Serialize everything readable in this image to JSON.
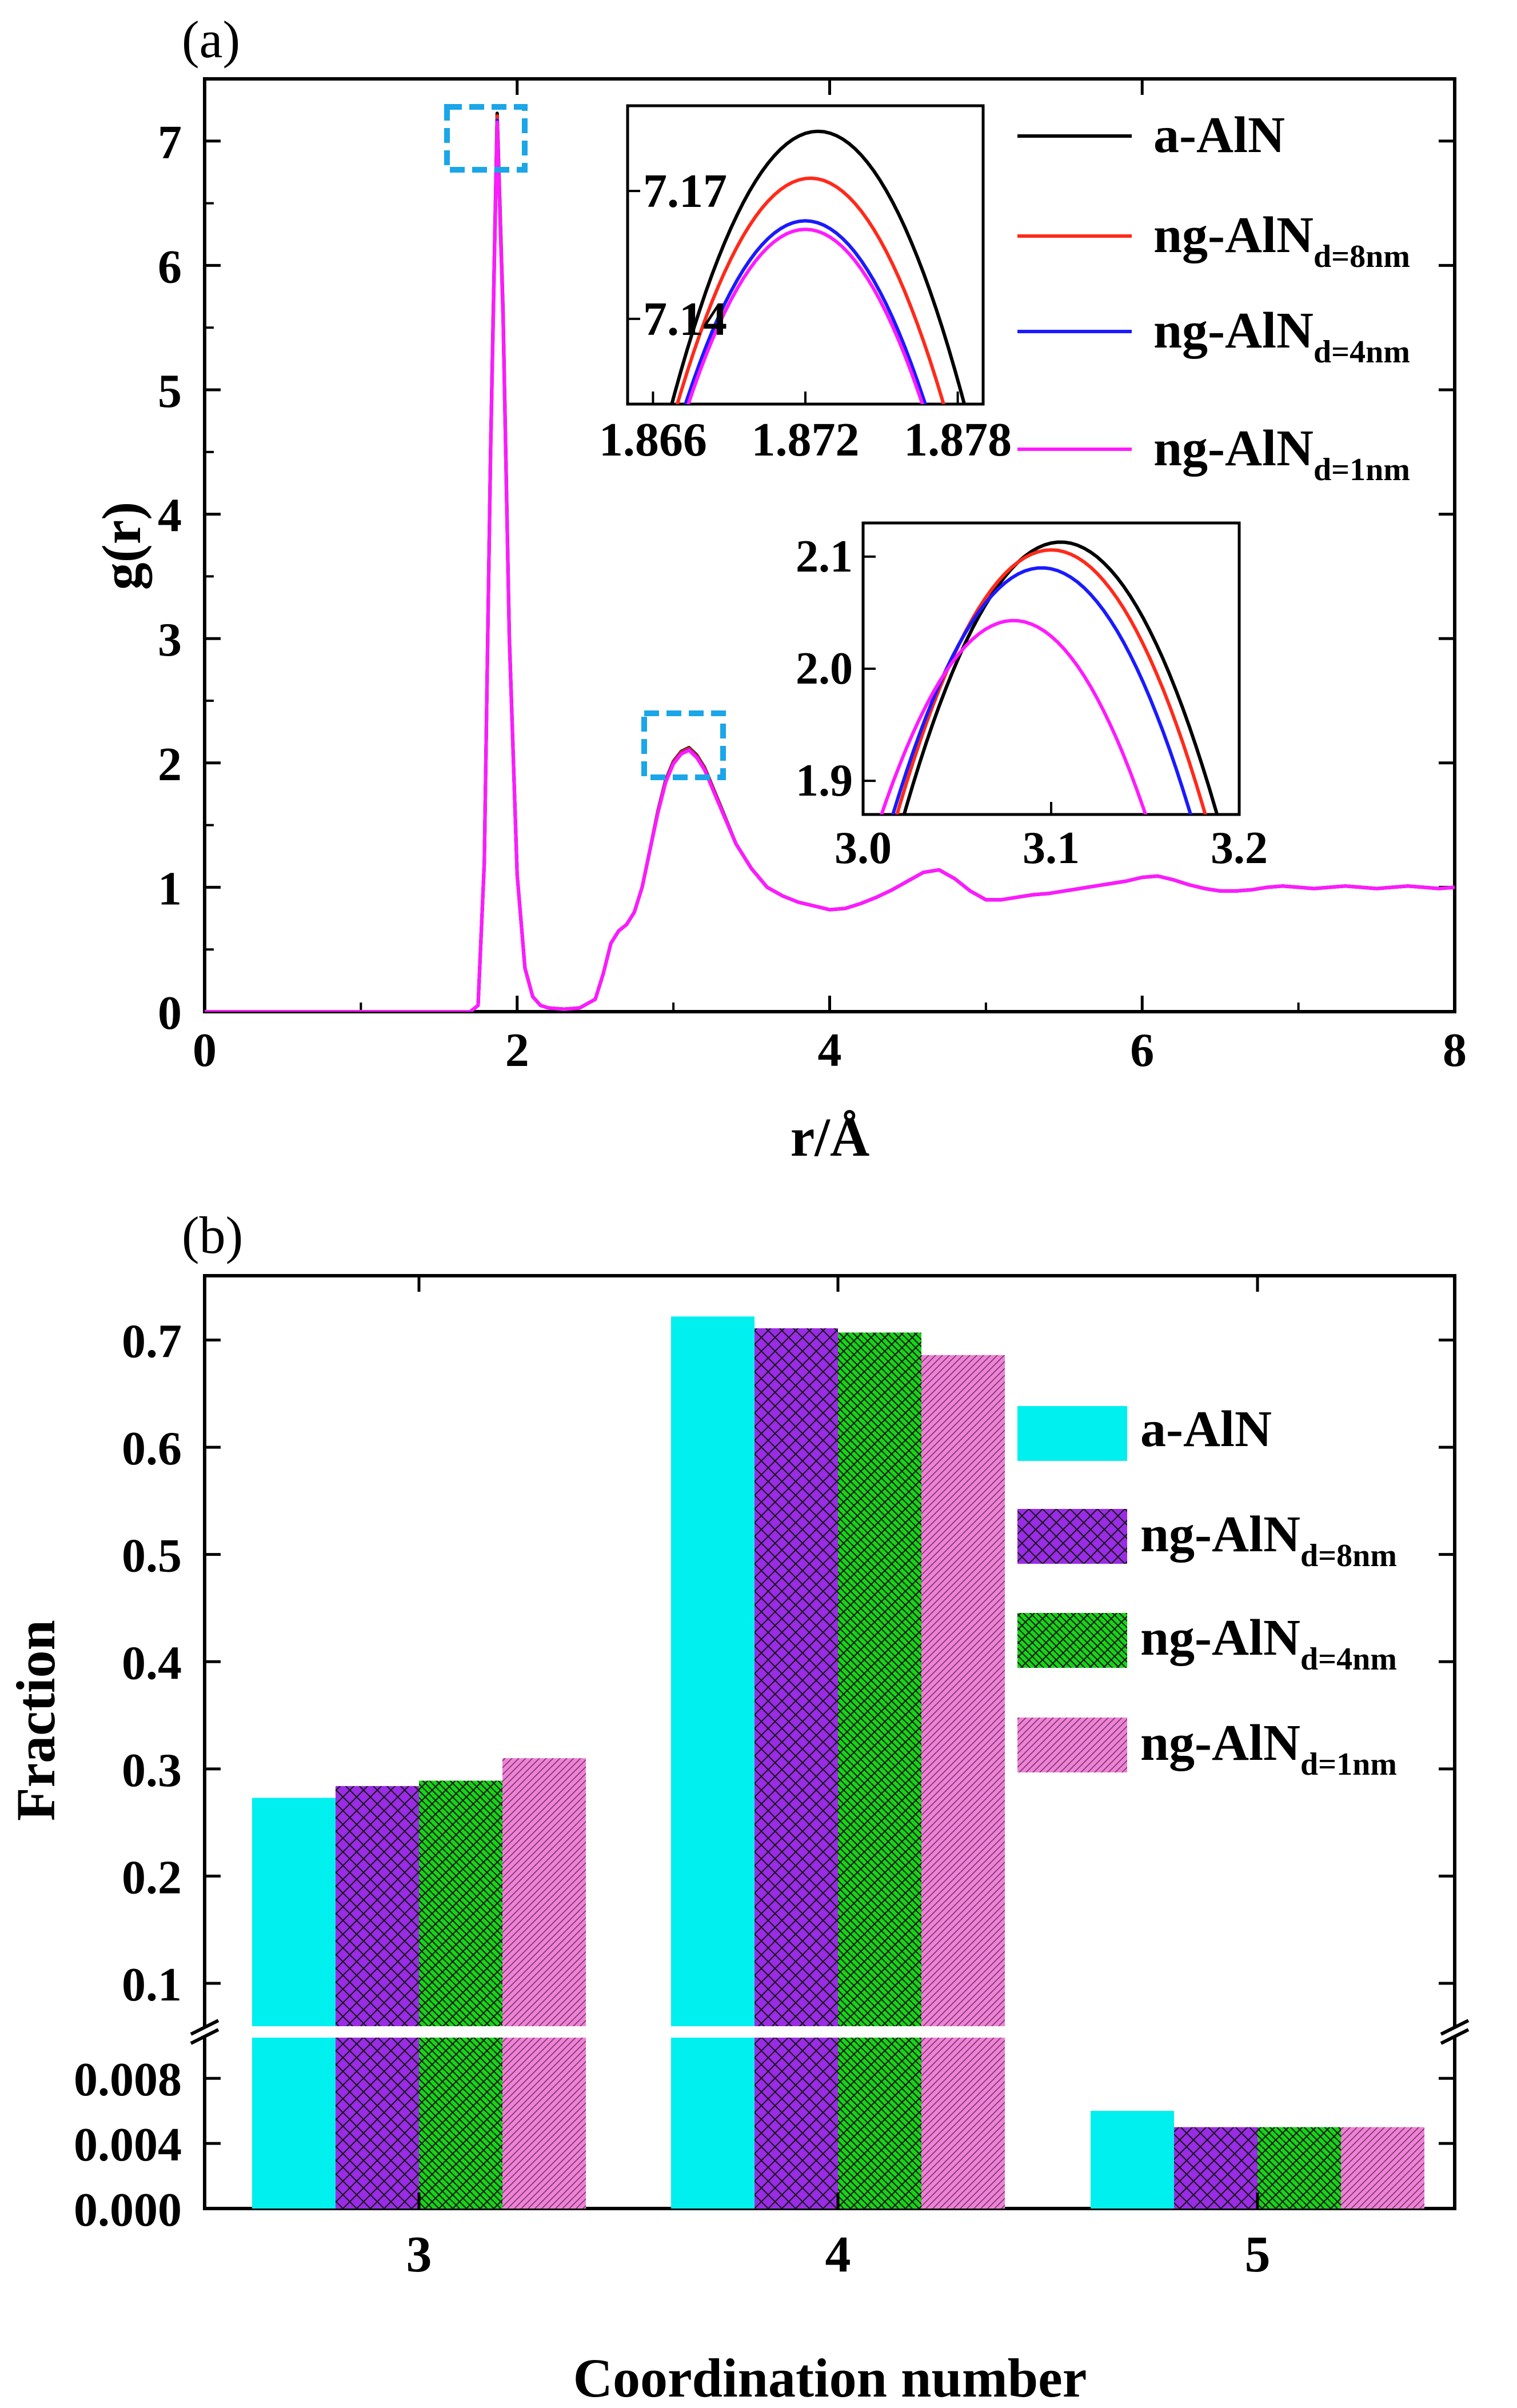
{
  "chart_data": [
    {
      "panel_label": "(a)",
      "type": "line",
      "xlabel": "r/Å",
      "ylabel": "g(r)",
      "xlim": [
        0,
        8
      ],
      "ylim": [
        0,
        7.5
      ],
      "xticks": [
        "0",
        "2",
        "4",
        "6",
        "8"
      ],
      "yticks": [
        "0",
        "1",
        "2",
        "3",
        "4",
        "5",
        "6",
        "7"
      ],
      "series": [
        {
          "name": "a-AlN",
          "sub": "",
          "color": "#000000"
        },
        {
          "name": "ng-AlN",
          "sub": "d=8nm",
          "color": "#ff2a1a"
        },
        {
          "name": "ng-AlN",
          "sub": "d=4nm",
          "color": "#1a1aff"
        },
        {
          "name": "ng-AlN",
          "sub": "d=1nm",
          "color": "#ff1aff"
        }
      ],
      "x": [
        0,
        1.7,
        1.75,
        1.79,
        1.83,
        1.872,
        1.91,
        1.95,
        2.0,
        2.05,
        2.1,
        2.15,
        2.2,
        2.3,
        2.4,
        2.5,
        2.55,
        2.6,
        2.65,
        2.7,
        2.75,
        2.8,
        2.85,
        2.9,
        2.95,
        3.0,
        3.05,
        3.1,
        3.15,
        3.2,
        3.3,
        3.4,
        3.5,
        3.6,
        3.7,
        3.8,
        3.9,
        4.0,
        4.1,
        4.2,
        4.3,
        4.4,
        4.5,
        4.6,
        4.7,
        4.8,
        4.9,
        5.0,
        5.1,
        5.2,
        5.3,
        5.4,
        5.5,
        5.6,
        5.7,
        5.8,
        5.9,
        6.0,
        6.1,
        6.2,
        6.3,
        6.4,
        6.5,
        6.6,
        6.7,
        6.8,
        6.9,
        7.0,
        7.1,
        7.2,
        7.3,
        7.4,
        7.5,
        7.6,
        7.7,
        7.8,
        7.9,
        8.0
      ],
      "y_common": [
        0,
        0,
        0.05,
        1.2,
        4.5,
        7.18,
        5.6,
        3.0,
        1.1,
        0.35,
        0.12,
        0.05,
        0.03,
        0.02,
        0.03,
        0.1,
        0.3,
        0.55,
        0.65,
        0.7,
        0.8,
        1.0,
        1.3,
        1.6,
        1.85,
        2.0,
        2.08,
        2.11,
        2.05,
        1.95,
        1.65,
        1.35,
        1.15,
        1.0,
        0.93,
        0.88,
        0.85,
        0.82,
        0.83,
        0.87,
        0.92,
        0.98,
        1.05,
        1.12,
        1.14,
        1.07,
        0.97,
        0.9,
        0.9,
        0.92,
        0.94,
        0.95,
        0.97,
        0.99,
        1.01,
        1.03,
        1.05,
        1.08,
        1.09,
        1.06,
        1.02,
        0.99,
        0.97,
        0.97,
        0.98,
        1.0,
        1.01,
        1.0,
        0.99,
        1.0,
        1.01,
        1.0,
        0.99,
        1.0,
        1.01,
        1.0,
        0.99,
        1.0
      ],
      "insets": [
        {
          "xlim": [
            1.865,
            1.879
          ],
          "ylim": [
            7.12,
            7.19
          ],
          "xticks": [
            "1.866",
            "1.872",
            "1.878"
          ],
          "yticks": [
            "7.14",
            "7.17"
          ],
          "peaks": [
            {
              "series": "a-AlN",
              "x": 1.8725,
              "y": 7.184
            },
            {
              "series": "ng-AlN d=8nm",
              "x": 1.8722,
              "y": 7.173
            },
            {
              "series": "ng-AlN d=4nm",
              "x": 1.872,
              "y": 7.163
            },
            {
              "series": "ng-AlN d=1nm",
              "x": 1.872,
              "y": 7.161
            }
          ]
        },
        {
          "xlim": [
            3.0,
            3.2
          ],
          "ylim": [
            1.87,
            2.13
          ],
          "xticks": [
            "3.0",
            "3.1",
            "3.2"
          ],
          "yticks": [
            "1.9",
            "2.0",
            "2.1"
          ],
          "peaks": [
            {
              "series": "a-AlN",
              "x": 3.105,
              "y": 2.113
            },
            {
              "series": "ng-AlN d=8nm",
              "x": 3.1,
              "y": 2.106
            },
            {
              "series": "ng-AlN d=4nm",
              "x": 3.095,
              "y": 2.09
            },
            {
              "series": "ng-AlN d=1nm",
              "x": 3.08,
              "y": 2.043
            }
          ]
        }
      ]
    },
    {
      "panel_label": "(b)",
      "type": "bar",
      "xlabel": "Coordination number",
      "ylabel": "Fraction",
      "categories": [
        "3",
        "4",
        "5"
      ],
      "y_upper_ticks": [
        "0.1",
        "0.2",
        "0.3",
        "0.4",
        "0.5",
        "0.6",
        "0.7"
      ],
      "y_lower_ticks": [
        "0.000",
        "0.004",
        "0.008"
      ],
      "axis_break": "between 0.01 and 0.06",
      "series": [
        {
          "name": "a-AlN",
          "sub": "",
          "color": "#00f0f0",
          "pattern": "solid",
          "values": [
            0.273,
            0.722,
            0.006
          ]
        },
        {
          "name": "ng-AlN",
          "sub": "d=8nm",
          "color": "#9a2be6",
          "pattern": "diagonal",
          "values": [
            0.284,
            0.711,
            0.005
          ]
        },
        {
          "name": "ng-AlN",
          "sub": "d=4nm",
          "color": "#16d416",
          "pattern": "crosshatch",
          "values": [
            0.289,
            0.707,
            0.005
          ]
        },
        {
          "name": "ng-AlN",
          "sub": "d=1nm",
          "color": "#f080d8",
          "pattern": "diagonal-fine",
          "values": [
            0.31,
            0.686,
            0.005
          ]
        }
      ]
    }
  ]
}
